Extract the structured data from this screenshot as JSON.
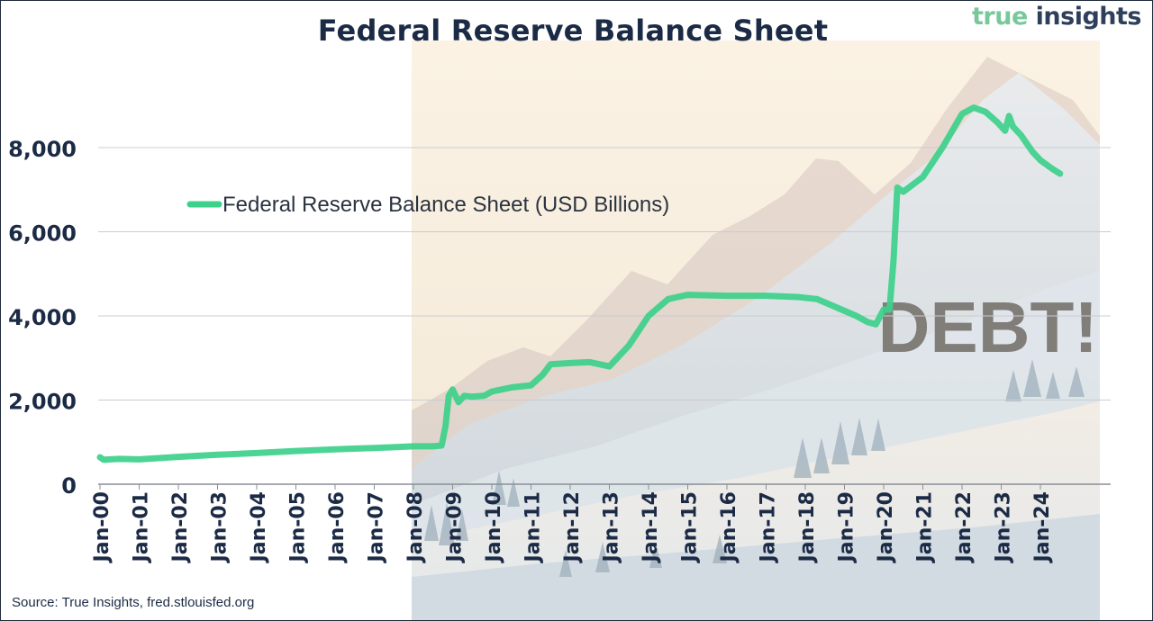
{
  "brand": {
    "part1": "true ",
    "part2": "insights"
  },
  "footer": {
    "source": "Source: True Insights, fred.stlouisfed.org"
  },
  "overlay_text": "DEBT!",
  "colors": {
    "line": "#3dd08b",
    "title": "#1c2b45",
    "grid": "#c9ccd2",
    "brand_green": "#79c89b",
    "brand_navy": "#2e3f5c"
  },
  "chart_data": {
    "type": "line",
    "title": "Federal Reserve Balance Sheet",
    "xlabel": "",
    "ylabel": "",
    "ylim": [
      0,
      8000
    ],
    "yticks": [
      0,
      2000,
      4000,
      6000,
      8000
    ],
    "ytick_labels": [
      "0",
      "2,000",
      "4,000",
      "6,000",
      "8,000"
    ],
    "grid": true,
    "legend_position": "top-left",
    "xlim": [
      2000.0,
      2024.75
    ],
    "xticks": [
      2000,
      2001,
      2002,
      2003,
      2004,
      2005,
      2006,
      2007,
      2008,
      2009,
      2010,
      2011,
      2012,
      2013,
      2014,
      2015,
      2016,
      2017,
      2018,
      2019,
      2020,
      2021,
      2022,
      2023,
      2024
    ],
    "xtick_labels": [
      "Jan-00",
      "Jan-01",
      "Jan-02",
      "Jan-03",
      "Jan-04",
      "Jan-05",
      "Jan-06",
      "Jan-07",
      "Jan-08",
      "Jan-09",
      "Jan-10",
      "Jan-11",
      "Jan-12",
      "Jan-13",
      "Jan-14",
      "Jan-15",
      "Jan-16",
      "Jan-17",
      "Jan-18",
      "Jan-19",
      "Jan-20",
      "Jan-21",
      "Jan-22",
      "Jan-23",
      "Jan-24"
    ],
    "series": [
      {
        "name": "Federal Reserve Balance Sheet (USD Billions)",
        "x": [
          2000.0,
          2000.1,
          2000.25,
          2000.5,
          2001.0,
          2001.5,
          2002.0,
          2003.0,
          2004.0,
          2005.0,
          2006.0,
          2007.0,
          2007.5,
          2008.0,
          2008.5,
          2008.72,
          2008.82,
          2008.9,
          2009.0,
          2009.15,
          2009.3,
          2009.5,
          2009.8,
          2010.0,
          2010.5,
          2011.0,
          2011.3,
          2011.5,
          2012.0,
          2012.5,
          2013.0,
          2013.5,
          2014.0,
          2014.5,
          2015.0,
          2016.0,
          2017.0,
          2017.8,
          2018.3,
          2018.8,
          2019.3,
          2019.6,
          2019.8,
          2020.0,
          2020.15,
          2020.25,
          2020.35,
          2020.5,
          2021.0,
          2021.5,
          2022.0,
          2022.3,
          2022.6,
          2022.9,
          2023.1,
          2023.2,
          2023.3,
          2023.5,
          2023.8,
          2024.0,
          2024.3,
          2024.5
        ],
        "values": [
          640,
          580,
          590,
          600,
          590,
          620,
          650,
          700,
          740,
          790,
          830,
          860,
          880,
          900,
          900,
          920,
          1400,
          2100,
          2250,
          1950,
          2100,
          2080,
          2100,
          2200,
          2300,
          2350,
          2600,
          2850,
          2880,
          2900,
          2800,
          3300,
          4000,
          4400,
          4500,
          4480,
          4480,
          4450,
          4400,
          4200,
          4000,
          3850,
          3800,
          4150,
          4150,
          5300,
          7050,
          6950,
          7300,
          8000,
          8800,
          8950,
          8850,
          8600,
          8400,
          8750,
          8500,
          8300,
          7900,
          7700,
          7500,
          7380
        ]
      }
    ]
  }
}
